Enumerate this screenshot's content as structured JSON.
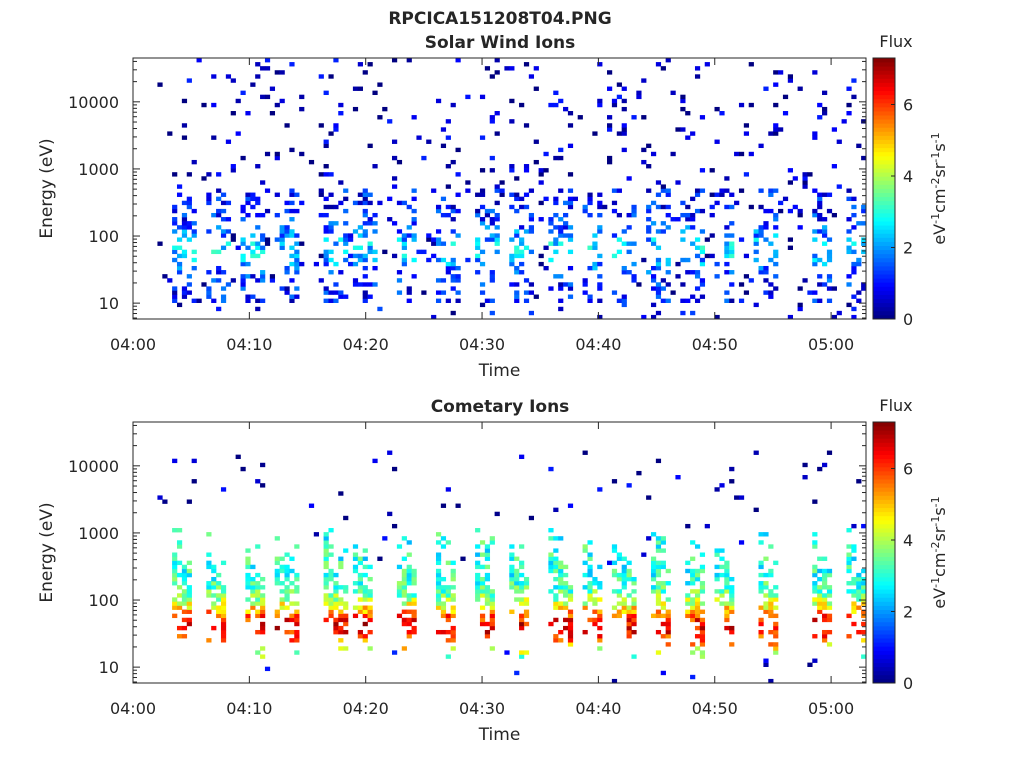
{
  "figure_title": "RPCICA151208T04.PNG",
  "colors": {
    "colormap": [
      "#00007f",
      "#0000ff",
      "#007fff",
      "#00ffff",
      "#7fff7f",
      "#ffff00",
      "#ff7f00",
      "#ff0000",
      "#7f0000"
    ],
    "axis": "#262626",
    "background": "#ffffff"
  },
  "chart_data": [
    {
      "type": "heatmap",
      "title": "Solar Wind Ions",
      "xlabel": "Time",
      "ylabel": "Energy (eV)",
      "xlim": [
        "04:00",
        "05:03"
      ],
      "xticks": [
        "04:00",
        "04:10",
        "04:20",
        "04:30",
        "04:40",
        "04:50",
        "05:00"
      ],
      "ylim": [
        5.8,
        45000
      ],
      "yscale": "log",
      "yticks": [
        10,
        100,
        1000,
        10000
      ],
      "ytick_labels": [
        "10",
        "100",
        "1000",
        "10000"
      ],
      "colorbar": {
        "title": "Flux",
        "label": "eV-1cm-2sr-1s-1",
        "range": [
          0,
          7.3
        ],
        "ticks": [
          0,
          2,
          4,
          6
        ]
      },
      "pattern": "sparse",
      "burst_minutes": [
        4.3,
        7.2,
        10.4,
        13.2,
        17.4,
        19.8,
        23.5,
        27.0,
        30.3,
        33.3,
        36.8,
        39.5,
        42.2,
        45.3,
        48.2,
        50.8,
        54.5,
        59.2,
        62.3
      ],
      "intensity_scale": 0.45,
      "description": "Sparse low-flux speckle (mostly 0-2) across all energies; scattered green/yellow at 40-100 eV near 04:40-04:50"
    },
    {
      "type": "heatmap",
      "title": "Cometary Ions",
      "xlabel": "Time",
      "ylabel": "Energy (eV)",
      "xlim": [
        "04:00",
        "05:03"
      ],
      "xticks": [
        "04:00",
        "04:10",
        "04:20",
        "04:30",
        "04:40",
        "04:50",
        "05:00"
      ],
      "ylim": [
        5.8,
        45000
      ],
      "yscale": "log",
      "yticks": [
        10,
        100,
        1000,
        10000
      ],
      "ytick_labels": [
        "10",
        "100",
        "1000",
        "10000"
      ],
      "colorbar": {
        "title": "Flux",
        "label": "eV-1cm-2sr-1s-1",
        "range": [
          0,
          7.3
        ],
        "ticks": [
          0,
          2,
          4,
          6
        ]
      },
      "pattern": "bursts",
      "burst_minutes": [
        4.3,
        7.2,
        10.4,
        13.2,
        17.4,
        19.8,
        23.5,
        27.0,
        30.3,
        33.3,
        36.8,
        39.5,
        42.2,
        45.3,
        48.2,
        50.8,
        54.5,
        59.2,
        62.3
      ],
      "intensity_scale": 1.0,
      "description": "Periodic bursts every ~3 min, flux 3-7 concentrated at 20-500 eV, peaks ~6-7 at 30-50 eV around 04:40-04:50"
    }
  ]
}
